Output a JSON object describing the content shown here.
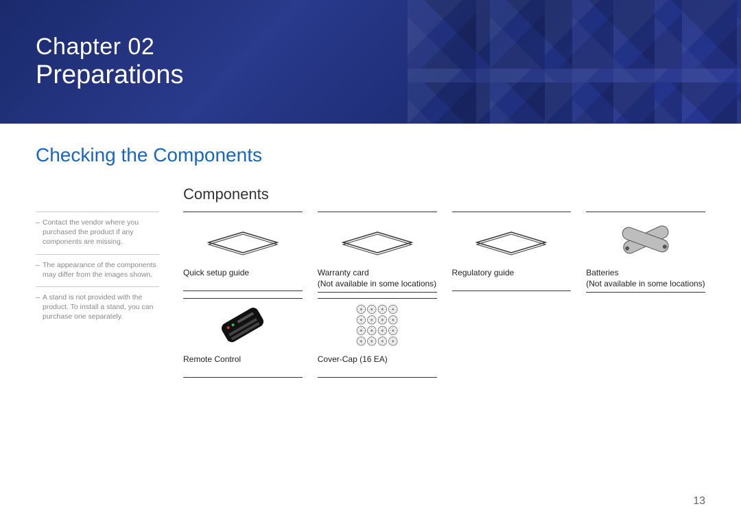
{
  "colors": {
    "banner_gradient": [
      "#1a2a6c",
      "#2a3a8c",
      "#1e2e78",
      "#263694"
    ],
    "section_title": "#1666c7",
    "text": "#333333",
    "muted": "#888888",
    "rule": "#333333",
    "sidebar_rule": "#cccccc"
  },
  "typography": {
    "chapter_fontsize": 34,
    "title_fontsize": 38,
    "section_title_fontsize": 28,
    "subsection_title_fontsize": 22,
    "body_fontsize": 12,
    "sidebar_fontsize": 10.5,
    "page_num_fontsize": 16
  },
  "banner": {
    "chapter": "Chapter  02",
    "title": "Preparations"
  },
  "section_title": "Checking the Components",
  "subsection_title": "Components",
  "sidebar_notes": [
    "Contact the vendor where you purchased the product if any components are missing.",
    "The appearance of the components may differ from the images shown.",
    "A stand is not provided with the product. To install a stand, you can purchase one separately."
  ],
  "component_grid": {
    "columns": 4,
    "row_image_height": 70,
    "items": [
      {
        "icon": "sheet",
        "label": "Quick setup guide"
      },
      {
        "icon": "sheet",
        "label": "Warranty card\n(Not available in some locations)"
      },
      {
        "icon": "sheet",
        "label": "Regulatory guide"
      },
      {
        "icon": "batteries",
        "label": "Batteries\n(Not available in some locations)"
      },
      {
        "icon": "remote",
        "label": "Remote Control"
      },
      {
        "icon": "cover-caps-16",
        "label": "Cover-Cap (16 EA)"
      }
    ]
  },
  "page_number": "13"
}
